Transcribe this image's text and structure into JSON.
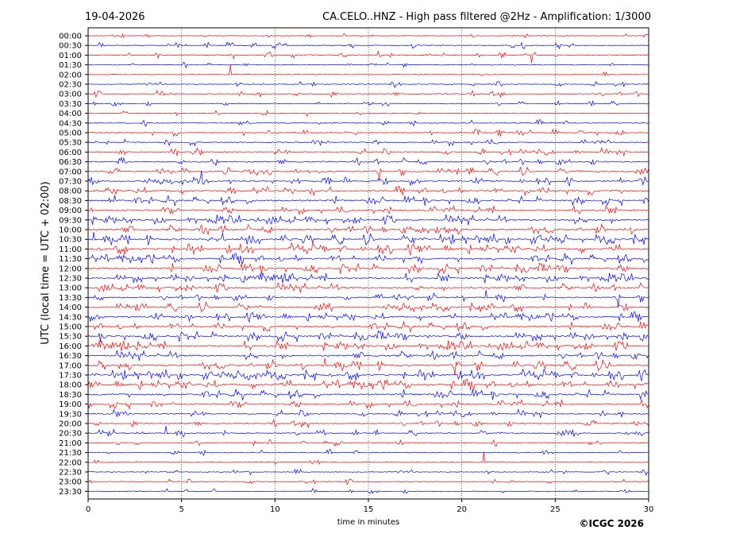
{
  "chart_data": {
    "type": "line",
    "date": "19-04-2026",
    "title": "CA.CELO..HNZ - High pass filtered @2Hz - Amplification: 1/3000",
    "xlabel": "time in minutes",
    "ylabel": "UTC (local time = UTC + 02:00)",
    "copyright": "©ICGC 2026",
    "xlim": [
      0,
      30
    ],
    "x_ticks": [
      "0",
      "5",
      "10",
      "15",
      "20",
      "25",
      "30"
    ],
    "grid": "vertical dotted lines at every 5 minutes",
    "colors": {
      "odd_trace": "#ff0000",
      "even_trace": "#0000ff",
      "grid": "#000000"
    },
    "rows": [
      {
        "label": "00:00",
        "activity": 0.05
      },
      {
        "label": "00:30",
        "activity": 0.25
      },
      {
        "label": "01:00",
        "activity": 0.3
      },
      {
        "label": "01:30",
        "activity": 0.05
      },
      {
        "label": "02:00",
        "activity": 0.05
      },
      {
        "label": "02:30",
        "activity": 0.15
      },
      {
        "label": "03:00",
        "activity": 0.25
      },
      {
        "label": "03:30",
        "activity": 0.15
      },
      {
        "label": "04:00",
        "activity": 0.05
      },
      {
        "label": "04:30",
        "activity": 0.2
      },
      {
        "label": "05:00",
        "activity": 0.3
      },
      {
        "label": "05:30",
        "activity": 0.35
      },
      {
        "label": "06:00",
        "activity": 0.4
      },
      {
        "label": "06:30",
        "activity": 0.5
      },
      {
        "label": "07:00",
        "activity": 0.45
      },
      {
        "label": "07:30",
        "activity": 0.55
      },
      {
        "label": "08:00",
        "activity": 0.6
      },
      {
        "label": "08:30",
        "activity": 0.7
      },
      {
        "label": "09:00",
        "activity": 0.65
      },
      {
        "label": "09:30",
        "activity": 0.75
      },
      {
        "label": "10:00",
        "activity": 0.8
      },
      {
        "label": "10:30",
        "activity": 0.9
      },
      {
        "label": "11:00",
        "activity": 0.9
      },
      {
        "label": "11:30",
        "activity": 0.8
      },
      {
        "label": "12:00",
        "activity": 0.85
      },
      {
        "label": "12:30",
        "activity": 0.75
      },
      {
        "label": "13:00",
        "activity": 0.7
      },
      {
        "label": "13:30",
        "activity": 0.55
      },
      {
        "label": "14:00",
        "activity": 0.65
      },
      {
        "label": "14:30",
        "activity": 0.7
      },
      {
        "label": "15:00",
        "activity": 0.75
      },
      {
        "label": "15:30",
        "activity": 0.85
      },
      {
        "label": "16:00",
        "activity": 0.8
      },
      {
        "label": "16:30",
        "activity": 0.75
      },
      {
        "label": "17:00",
        "activity": 0.8
      },
      {
        "label": "17:30",
        "activity": 0.85
      },
      {
        "label": "18:00",
        "activity": 0.85
      },
      {
        "label": "18:30",
        "activity": 0.8
      },
      {
        "label": "19:00",
        "activity": 0.65
      },
      {
        "label": "19:30",
        "activity": 0.45
      },
      {
        "label": "20:00",
        "activity": 0.4
      },
      {
        "label": "20:30",
        "activity": 0.35
      },
      {
        "label": "21:00",
        "activity": 0.25
      },
      {
        "label": "21:30",
        "activity": 0.15
      },
      {
        "label": "22:00",
        "activity": 0.08
      },
      {
        "label": "22:30",
        "activity": 0.1
      },
      {
        "label": "23:00",
        "activity": 0.1
      },
      {
        "label": "23:30",
        "activity": 0.05
      }
    ]
  }
}
